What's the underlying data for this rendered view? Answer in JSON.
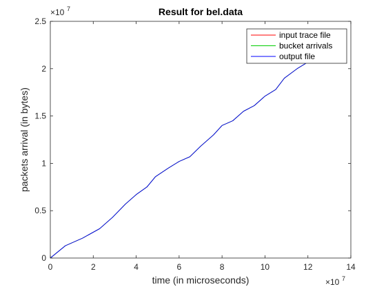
{
  "chart_data": {
    "type": "line",
    "title": "Result for bel.data",
    "xlabel": "time (in microseconds)",
    "ylabel": "packets arrival (in bytes)",
    "x_exponent": {
      "base": "×10",
      "power": "7"
    },
    "y_exponent": {
      "base": "×10",
      "power": "7"
    },
    "xlim": [
      0,
      14
    ],
    "ylim": [
      0,
      2.5
    ],
    "x_ticks": [
      "0",
      "2",
      "4",
      "6",
      "8",
      "10",
      "12",
      "14"
    ],
    "y_ticks": [
      "0",
      "0.5",
      "1",
      "1.5",
      "2",
      "2.5"
    ],
    "legend_position": "top-right",
    "grid": false,
    "series": [
      {
        "name": "input trace file",
        "color": "#ff0000",
        "x": [
          0,
          0.7,
          1.5,
          2.3,
          2.9,
          3.5,
          4.0,
          4.5,
          4.9,
          5.5,
          6.0,
          6.5,
          7.0,
          7.6,
          8.0,
          8.5,
          9.0,
          9.5,
          10.0,
          10.5,
          10.9,
          11.5,
          12.0
        ],
        "y": [
          0,
          0.13,
          0.21,
          0.31,
          0.43,
          0.57,
          0.67,
          0.75,
          0.86,
          0.95,
          1.02,
          1.07,
          1.18,
          1.3,
          1.4,
          1.45,
          1.55,
          1.61,
          1.71,
          1.78,
          1.9,
          2.0,
          2.07
        ]
      },
      {
        "name": "bucket arrivals",
        "color": "#00cc00",
        "x": [
          0,
          0.7,
          1.5,
          2.3,
          2.9,
          3.5,
          4.0,
          4.5,
          4.9,
          5.5,
          6.0,
          6.5,
          7.0,
          7.6,
          8.0,
          8.5,
          9.0,
          9.5,
          10.0,
          10.5,
          10.9,
          11.5,
          12.0
        ],
        "y": [
          0,
          0.13,
          0.21,
          0.31,
          0.43,
          0.57,
          0.67,
          0.75,
          0.86,
          0.95,
          1.02,
          1.07,
          1.18,
          1.3,
          1.4,
          1.45,
          1.55,
          1.61,
          1.71,
          1.78,
          1.9,
          2.0,
          2.07
        ]
      },
      {
        "name": "output file",
        "color": "#0000ff",
        "x": [
          0,
          0.7,
          1.5,
          2.3,
          2.9,
          3.5,
          4.0,
          4.5,
          4.9,
          5.5,
          6.0,
          6.5,
          7.0,
          7.6,
          8.0,
          8.5,
          9.0,
          9.5,
          10.0,
          10.5,
          10.9,
          11.5,
          12.0
        ],
        "y": [
          0,
          0.13,
          0.21,
          0.31,
          0.43,
          0.57,
          0.67,
          0.75,
          0.86,
          0.95,
          1.02,
          1.07,
          1.18,
          1.3,
          1.4,
          1.45,
          1.55,
          1.61,
          1.71,
          1.78,
          1.9,
          2.0,
          2.07
        ]
      }
    ]
  }
}
